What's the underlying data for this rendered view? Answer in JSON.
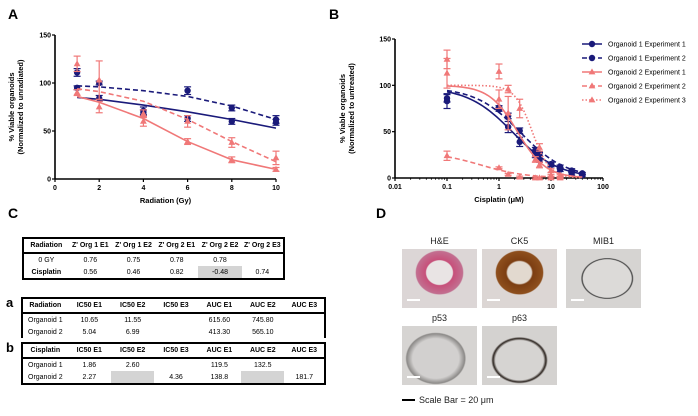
{
  "panels": {
    "A": "A",
    "B": "B",
    "C": "C",
    "D": "D",
    "a": "a",
    "b": "b"
  },
  "chart_data": [
    {
      "id": "A",
      "type": "line",
      "title": "",
      "xlabel": "Radiation (Gy)",
      "ylabel_line1": "% Viable organoids",
      "ylabel_line2": "(Normalized to unradiated)",
      "xlim": [
        0,
        10
      ],
      "ylim": [
        0,
        150
      ],
      "xticks": [
        0,
        2,
        4,
        6,
        8,
        10
      ],
      "yticks": [
        0,
        50,
        100,
        150
      ],
      "series": [
        {
          "name": "Organoid 1 Experiment 1",
          "color": "#1a1a7a",
          "marker": "circle",
          "line": "solid",
          "points": [
            [
              1,
              111,
              4
            ],
            [
              2,
              84,
              3
            ],
            [
              4,
              71,
              4
            ],
            [
              6,
              63,
              3
            ],
            [
              8,
              60,
              3
            ],
            [
              10,
              59,
              3
            ]
          ],
          "fit": [
            [
              1,
              85
            ],
            [
              2,
              83
            ],
            [
              4,
              77
            ],
            [
              6,
              70
            ],
            [
              8,
              62
            ],
            [
              10,
              53
            ]
          ]
        },
        {
          "name": "Organoid 1 Experiment 2",
          "color": "#1a1a7a",
          "marker": "circle",
          "line": "dashed",
          "points": [
            [
              1,
              95,
              2
            ],
            [
              2,
              100,
              2
            ],
            [
              4,
              69,
              3
            ],
            [
              6,
              92,
              4
            ],
            [
              8,
              74,
              3
            ],
            [
              10,
              62,
              4
            ]
          ],
          "fit": [
            [
              1,
              97
            ],
            [
              2,
              96
            ],
            [
              4,
              92
            ],
            [
              6,
              86
            ],
            [
              8,
              76
            ],
            [
              10,
              62
            ]
          ]
        },
        {
          "name": "Organoid 2 Experiment 1",
          "color": "#f07878",
          "marker": "triangle",
          "line": "solid",
          "points": [
            [
              1,
              90,
              3
            ],
            [
              2,
              75,
              6
            ],
            [
              4,
              60,
              5
            ],
            [
              6,
              39,
              3
            ],
            [
              8,
              20,
              3
            ],
            [
              10,
              10,
              2
            ]
          ],
          "fit": [
            [
              1,
              86
            ],
            [
              2,
              80
            ],
            [
              4,
              63
            ],
            [
              6,
              39
            ],
            [
              8,
              20
            ],
            [
              10,
              10
            ]
          ]
        },
        {
          "name": "Organoid 2 Experiment 2",
          "color": "#f07878",
          "marker": "triangle",
          "line": "dashed",
          "points": [
            [
              1,
              120,
              8
            ],
            [
              2,
              103,
              20
            ],
            [
              4,
              68,
              4
            ],
            [
              6,
              60,
              6
            ],
            [
              8,
              38,
              5
            ],
            [
              10,
              22,
              7
            ]
          ],
          "fit": [
            [
              1,
              94
            ],
            [
              2,
              91
            ],
            [
              4,
              81
            ],
            [
              6,
              62
            ],
            [
              8,
              39
            ],
            [
              10,
              18
            ]
          ]
        }
      ]
    },
    {
      "id": "B",
      "type": "line",
      "title": "",
      "xlabel": "Cisplatin (μM)",
      "ylabel_line1": "% Viable organoids",
      "ylabel_line2": "(Normalized to untreated)",
      "xscale": "log",
      "xlim": [
        0.01,
        100
      ],
      "ylim": [
        0,
        150
      ],
      "xticks": [
        "0.01",
        "0.1",
        "1",
        "10",
        "100"
      ],
      "yticks": [
        0,
        50,
        100,
        150
      ],
      "legend_position": "right",
      "series": [
        {
          "name": "Organoid 1 Experiment 1",
          "color": "#1a1a7a",
          "marker": "circle",
          "line": "solid",
          "points": [
            [
              0.1,
              83,
              8
            ],
            [
              1,
              74,
              2
            ],
            [
              1.5,
              55,
              6
            ],
            [
              2.5,
              39,
              5
            ],
            [
              5,
              25,
              3
            ],
            [
              6,
              19,
              2
            ],
            [
              10,
              14,
              2
            ],
            [
              15,
              9,
              2
            ],
            [
              25,
              5,
              2
            ],
            [
              40,
              3,
              1
            ]
          ],
          "ic50": 1.86
        },
        {
          "name": "Organoid 1 Experiment 2",
          "color": "#1a1a7a",
          "marker": "circle",
          "line": "dashed",
          "points": [
            [
              0.1,
              86,
              4
            ],
            [
              1,
              76,
              2
            ],
            [
              1.5,
              67,
              3
            ],
            [
              2.5,
              51,
              3
            ],
            [
              5,
              30,
              3
            ],
            [
              6,
              26,
              2
            ],
            [
              10,
              15,
              2
            ],
            [
              15,
              12,
              2
            ],
            [
              25,
              8,
              2
            ],
            [
              40,
              5,
              1
            ]
          ],
          "ic50": 2.6
        },
        {
          "name": "Organoid 2 Experiment 1",
          "color": "#f07878",
          "marker": "triangle",
          "line": "solid",
          "points": [
            [
              0.1,
              113,
              16
            ],
            [
              1,
              85,
              10
            ],
            [
              1.5,
              70,
              18
            ],
            [
              5,
              20,
              3
            ],
            [
              6,
              14,
              3
            ],
            [
              10,
              3,
              1
            ],
            [
              15,
              1,
              1
            ]
          ],
          "ic50": 2.27
        },
        {
          "name": "Organoid 2 Experiment 2",
          "color": "#f07878",
          "marker": "triangle",
          "line": "dashed",
          "points": [
            [
              0.1,
              24,
              5
            ],
            [
              1,
              11,
              1
            ],
            [
              1.5,
              4,
              1
            ],
            [
              2.5,
              1,
              1
            ],
            [
              5,
              0,
              1
            ],
            [
              6,
              0,
              1
            ],
            [
              10,
              0,
              1
            ],
            [
              15,
              0,
              1
            ]
          ],
          "ic50": null
        },
        {
          "name": "Organoid 2 Experiment 3",
          "color": "#f07878",
          "marker": "triangle",
          "line": "dotted",
          "points": [
            [
              0.1,
              128,
              10
            ],
            [
              1,
              115,
              8
            ],
            [
              1.5,
              96,
              4
            ],
            [
              2.5,
              75,
              10
            ],
            [
              6,
              33,
              4
            ],
            [
              10,
              8,
              2
            ],
            [
              15,
              3,
              1
            ]
          ],
          "ic50": 4.36
        }
      ]
    }
  ],
  "table_c": {
    "header": [
      "Radiation",
      "Z' Org 1 E1",
      "Z' Org 1 E2",
      "Z' Org 2 E1",
      "Z' Org 2 E2",
      "Z' Org 2 E3"
    ],
    "rows": [
      {
        "cells": [
          "0 GY",
          "0.76",
          "0.75",
          "0.78",
          "0.78",
          ""
        ],
        "gray": []
      },
      {
        "cells": [
          "Cisplatin",
          "0.56",
          "0.46",
          "0.82",
          "-0.48",
          "0.74"
        ],
        "gray": [
          4
        ]
      }
    ]
  },
  "table_a": {
    "header": [
      "Radiation",
      "IC50 E1",
      "IC50 E2",
      "IC50 E3",
      "AUC E1",
      "AUC E2",
      "AUC E3"
    ],
    "rows": [
      {
        "cells": [
          "Organoid 1",
          "10.65",
          "11.55",
          "",
          "615.60",
          "745.80",
          ""
        ],
        "gray": []
      },
      {
        "cells": [
          "Organoid 2",
          "5.04",
          "6.99",
          "",
          "413.30",
          "565.10",
          ""
        ],
        "gray": []
      }
    ]
  },
  "table_b": {
    "header": [
      "Cisplatin",
      "IC50 E1",
      "IC50 E2",
      "IC50 E3",
      "AUC E1",
      "AUC E2",
      "AUC E3"
    ],
    "rows": [
      {
        "cells": [
          "Organoid 1",
          "1.86",
          "2.60",
          "",
          "119.5",
          "132.5",
          ""
        ],
        "gray": []
      },
      {
        "cells": [
          "Organoid 2",
          "2.27",
          "",
          "4.36",
          "138.8",
          "",
          "181.7"
        ],
        "gray": [
          2,
          5
        ]
      }
    ]
  },
  "histology": {
    "labels": [
      "H&E",
      "CK5",
      "MIB1",
      "p53",
      "p63"
    ],
    "scale_bar": "Scale Bar = 20 μm"
  }
}
